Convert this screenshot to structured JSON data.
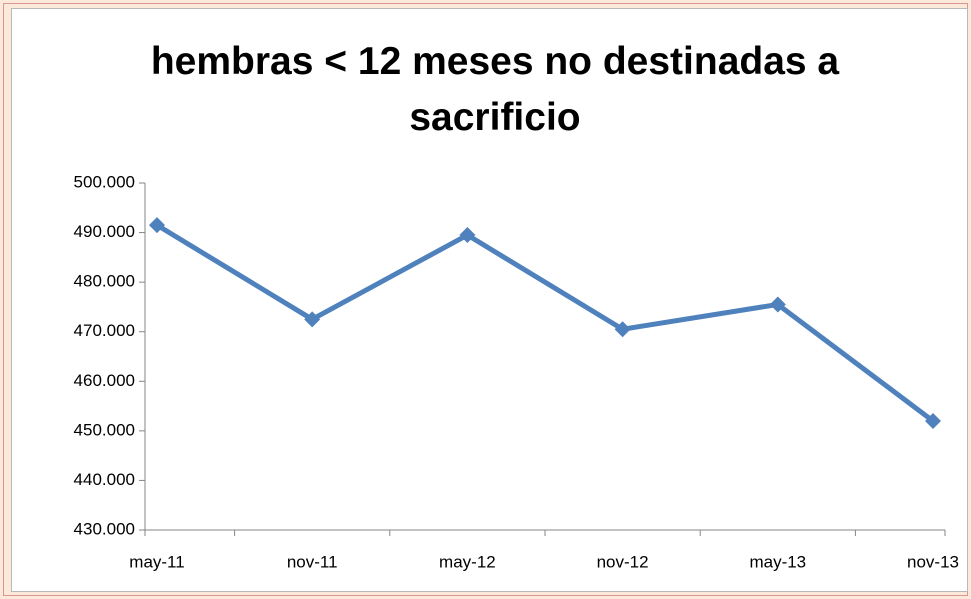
{
  "chart_data": {
    "type": "line",
    "title": "hembras < 12 meses no destinadas a sacrificio",
    "categories": [
      "may-11",
      "nov-11",
      "may-12",
      "nov-12",
      "may-13",
      "nov-13"
    ],
    "series": [
      {
        "name": "hembras < 12 meses no destinadas a sacrificio",
        "color": "#4f81bd",
        "values": [
          491500,
          472500,
          489500,
          470500,
          475500,
          452000
        ]
      }
    ],
    "ylim": [
      430000,
      500000
    ],
    "yticks": [
      {
        "value": 430000,
        "label": "430.000"
      },
      {
        "value": 440000,
        "label": "440.000"
      },
      {
        "value": 450000,
        "label": "450.000"
      },
      {
        "value": 460000,
        "label": "460.000"
      },
      {
        "value": 470000,
        "label": "470.000"
      },
      {
        "value": 480000,
        "label": "480.000"
      },
      {
        "value": 490000,
        "label": "490.000"
      },
      {
        "value": 500000,
        "label": "500.000"
      }
    ],
    "grid": false,
    "legend": false
  }
}
